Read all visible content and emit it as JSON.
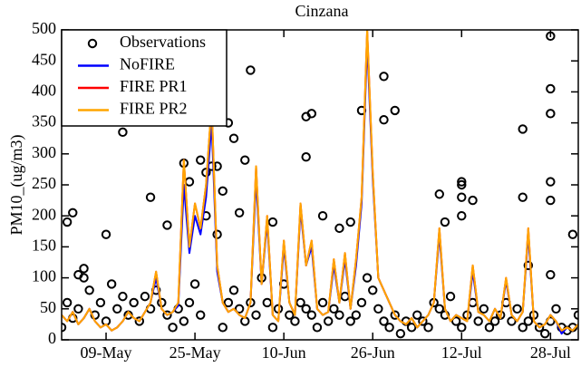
{
  "chart_data": {
    "type": "line",
    "title": "Cinzana",
    "y_label": "PM10_(ug/m3)",
    "xlim": [
      "01-May",
      "02-Aug"
    ],
    "xticks": [
      "09-May",
      "25-May",
      "10-Jun",
      "26-Jun",
      "12-Jul",
      "28-Jul"
    ],
    "ylim": [
      0,
      500
    ],
    "yticks": [
      0,
      50,
      100,
      150,
      200,
      250,
      300,
      350,
      400,
      450,
      500
    ],
    "legend": "upper left",
    "x": [
      "01-May",
      "02-May",
      "03-May",
      "04-May",
      "05-May",
      "06-May",
      "07-May",
      "08-May",
      "09-May",
      "10-May",
      "11-May",
      "12-May",
      "13-May",
      "14-May",
      "15-May",
      "16-May",
      "17-May",
      "18-May",
      "19-May",
      "20-May",
      "21-May",
      "22-May",
      "23-May",
      "24-May",
      "25-May",
      "26-May",
      "27-May",
      "28-May",
      "29-May",
      "30-May",
      "31-May",
      "01-Jun",
      "02-Jun",
      "03-Jun",
      "04-Jun",
      "05-Jun",
      "06-Jun",
      "07-Jun",
      "08-Jun",
      "09-Jun",
      "10-Jun",
      "11-Jun",
      "12-Jun",
      "13-Jun",
      "14-Jun",
      "15-Jun",
      "16-Jun",
      "17-Jun",
      "18-Jun",
      "19-Jun",
      "20-Jun",
      "21-Jun",
      "22-Jun",
      "23-Jun",
      "24-Jun",
      "25-Jun",
      "26-Jun",
      "27-Jun",
      "28-Jun",
      "29-Jun",
      "30-Jun",
      "01-Jul",
      "02-Jul",
      "03-Jul",
      "04-Jul",
      "05-Jul",
      "06-Jul",
      "07-Jul",
      "08-Jul",
      "09-Jul",
      "10-Jul",
      "11-Jul",
      "12-Jul",
      "13-Jul",
      "14-Jul",
      "15-Jul",
      "16-Jul",
      "17-Jul",
      "18-Jul",
      "19-Jul",
      "20-Jul",
      "21-Jul",
      "22-Jul",
      "23-Jul",
      "24-Jul",
      "25-Jul",
      "26-Jul",
      "27-Jul",
      "28-Jul",
      "29-Jul",
      "30-Jul",
      "31-Jul",
      "01-Aug",
      "02-Aug"
    ],
    "series": [
      {
        "name": "Observations",
        "color": "#000000",
        "marker": "circle",
        "x": [
          "01-May",
          "02-May",
          "03-May",
          "04-May",
          "05-May",
          "06-May",
          "07-May",
          "08-May",
          "09-May",
          "10-May",
          "11-May",
          "12-May",
          "13-May",
          "14-May",
          "15-May",
          "16-May",
          "17-May",
          "18-May",
          "19-May",
          "20-May",
          "21-May",
          "22-May",
          "23-May",
          "24-May",
          "25-May",
          "26-May",
          "27-May",
          "28-May",
          "29-May",
          "30-May",
          "31-May",
          "01-Jun",
          "02-Jun",
          "03-Jun",
          "04-Jun",
          "05-Jun",
          "06-Jun",
          "07-Jun",
          "08-Jun",
          "09-Jun",
          "10-Jun",
          "11-Jun",
          "12-Jun",
          "13-Jun",
          "14-Jun",
          "15-Jun",
          "16-Jun",
          "17-Jun",
          "18-Jun",
          "19-Jun",
          "20-Jun",
          "21-Jun",
          "22-Jun",
          "23-Jun",
          "24-Jun",
          "25-Jun",
          "26-Jun",
          "27-Jun",
          "28-Jun",
          "29-Jun",
          "30-Jun",
          "01-Jul",
          "02-Jul",
          "03-Jul",
          "04-Jul",
          "05-Jul",
          "06-Jul",
          "07-Jul",
          "08-Jul",
          "09-Jul",
          "10-Jul",
          "11-Jul",
          "12-Jul",
          "13-Jul",
          "14-Jul",
          "15-Jul",
          "16-Jul",
          "17-Jul",
          "18-Jul",
          "19-Jul",
          "20-Jul",
          "21-Jul",
          "22-Jul",
          "23-Jul",
          "24-Jul",
          "25-Jul",
          "26-Jul",
          "27-Jul",
          "28-Jul",
          "29-Jul",
          "30-Jul",
          "31-Jul",
          "01-Aug",
          "02-Aug",
          "02-May",
          "03-May",
          "04-May",
          "05-May",
          "09-May",
          "12-May",
          "17-May",
          "20-May",
          "23-May",
          "24-May",
          "26-May",
          "27-May",
          "28-May",
          "29-May",
          "30-May",
          "31-May",
          "02-Jun",
          "03-Jun",
          "04-Jun",
          "01-Jun",
          "08-Jun",
          "14-Jun",
          "14-Jun",
          "15-Jun",
          "17-Jun",
          "20-Jun",
          "22-Jun",
          "24-Jun",
          "28-Jun",
          "28-Jun",
          "30-Jun",
          "08-Jul",
          "09-Jul",
          "12-Jul",
          "12-Jul",
          "12-Jul",
          "12-Jul",
          "14-Jul",
          "23-Jul",
          "23-Jul",
          "24-Jul",
          "28-Jul",
          "28-Jul",
          "28-Jul",
          "28-Jul",
          "28-Jul",
          "28-Jul",
          "01-Aug"
        ],
        "values": [
          20,
          60,
          35,
          50,
          100,
          80,
          40,
          60,
          30,
          90,
          50,
          70,
          40,
          60,
          30,
          70,
          50,
          80,
          60,
          40,
          20,
          50,
          30,
          60,
          90,
          40,
          270,
          280,
          170,
          20,
          60,
          80,
          50,
          30,
          60,
          40,
          100,
          60,
          20,
          50,
          90,
          40,
          30,
          60,
          50,
          40,
          20,
          60,
          30,
          50,
          40,
          70,
          30,
          40,
          60,
          100,
          80,
          50,
          30,
          20,
          40,
          10,
          30,
          20,
          40,
          30,
          20,
          60,
          50,
          40,
          70,
          30,
          20,
          40,
          60,
          30,
          50,
          20,
          30,
          40,
          60,
          30,
          50,
          20,
          30,
          40,
          20,
          10,
          30,
          50,
          20,
          15,
          20,
          40,
          190,
          205,
          105,
          115,
          170,
          335,
          230,
          185,
          285,
          255,
          290,
          200,
          390,
          280,
          240,
          350,
          205,
          290,
          435,
          325,
          190,
          295,
          360,
          365,
          200,
          180,
          190,
          370,
          425,
          355,
          370,
          235,
          190,
          255,
          250,
          230,
          200,
          225,
          340,
          230,
          120,
          490,
          405,
          365,
          255,
          225,
          105,
          170
        ]
      },
      {
        "name": "NoFIRE",
        "color": "#0000ff",
        "values": [
          40,
          30,
          45,
          25,
          35,
          50,
          30,
          20,
          25,
          15,
          20,
          30,
          45,
          35,
          30,
          45,
          60,
          100,
          50,
          40,
          45,
          55,
          250,
          140,
          200,
          170,
          230,
          350,
          110,
          60,
          45,
          50,
          40,
          35,
          60,
          260,
          90,
          190,
          40,
          30,
          150,
          60,
          40,
          210,
          120,
          150,
          50,
          40,
          45,
          120,
          60,
          130,
          50,
          120,
          220,
          480,
          260,
          100,
          80,
          60,
          40,
          30,
          25,
          35,
          20,
          30,
          40,
          60,
          170,
          50,
          30,
          40,
          35,
          30,
          110,
          45,
          40,
          30,
          50,
          35,
          95,
          40,
          30,
          45,
          170,
          30,
          20,
          25,
          40,
          30,
          10,
          20,
          15,
          25
        ]
      },
      {
        "name": "FIRE PR1",
        "color": "#ff0000",
        "values": [
          40,
          30,
          45,
          25,
          35,
          50,
          30,
          20,
          25,
          15,
          20,
          30,
          45,
          35,
          30,
          45,
          60,
          110,
          50,
          40,
          45,
          60,
          290,
          150,
          220,
          180,
          250,
          380,
          120,
          60,
          45,
          50,
          40,
          35,
          60,
          280,
          90,
          200,
          40,
          30,
          160,
          60,
          40,
          220,
          120,
          160,
          50,
          40,
          45,
          130,
          60,
          140,
          50,
          130,
          230,
          500,
          270,
          100,
          80,
          60,
          40,
          30,
          25,
          35,
          20,
          30,
          40,
          60,
          180,
          50,
          30,
          40,
          35,
          30,
          120,
          45,
          40,
          30,
          50,
          35,
          100,
          40,
          30,
          45,
          180,
          30,
          20,
          25,
          40,
          30,
          15,
          20,
          15,
          25
        ]
      },
      {
        "name": "FIRE PR2",
        "color": "#ffa500",
        "values": [
          40,
          30,
          45,
          25,
          35,
          50,
          30,
          20,
          25,
          15,
          20,
          30,
          45,
          35,
          30,
          45,
          60,
          110,
          50,
          40,
          45,
          60,
          290,
          150,
          220,
          180,
          250,
          380,
          120,
          60,
          45,
          50,
          40,
          35,
          60,
          280,
          90,
          200,
          40,
          30,
          160,
          60,
          40,
          220,
          120,
          160,
          50,
          40,
          45,
          130,
          60,
          140,
          50,
          130,
          230,
          500,
          270,
          100,
          80,
          60,
          40,
          30,
          25,
          35,
          20,
          30,
          40,
          60,
          180,
          50,
          30,
          40,
          35,
          30,
          120,
          45,
          40,
          30,
          50,
          35,
          100,
          40,
          30,
          45,
          180,
          30,
          20,
          25,
          40,
          30,
          15,
          20,
          15,
          25
        ]
      }
    ]
  }
}
